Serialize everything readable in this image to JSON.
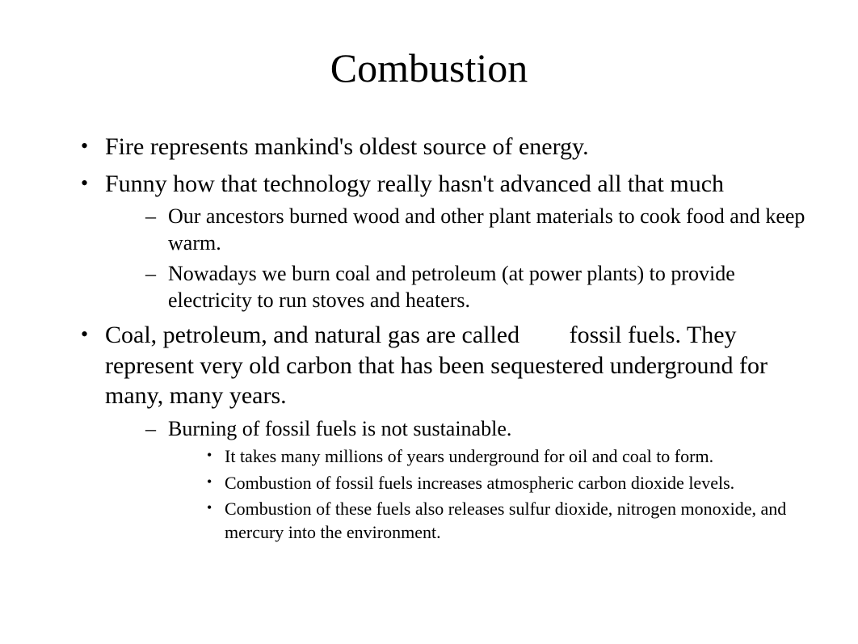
{
  "title": "Combustion",
  "bullets": {
    "b1": "Fire represents mankind's oldest source of energy.",
    "b2": "Funny how that technology really hasn't advanced all that much",
    "b2_sub1": "Our ancestors burned wood and other plant materials to cook food and keep warm.",
    "b2_sub2": "Nowadays we burn coal and petroleum (at power plants) to provide electricity to run stoves and heaters.",
    "b3_part1": "Coal, petroleum, and natural gas are called ",
    "b3_blank": "fossil fuels",
    "b3_part2": ". They represent very old carbon that has been sequestered underground for many, many years.",
    "b3_sub1": "Burning of fossil fuels is not sustainable.",
    "b3_sub1_a": "It takes many millions of years underground for oil and coal to form.",
    "b3_sub1_b": "Combustion of fossil fuels increases atmospheric carbon dioxide levels.",
    "b3_sub1_c": "Combustion of these fuels also releases sulfur dioxide, nitrogen monoxide, and mercury into the environment."
  },
  "styling": {
    "background_color": "#ffffff",
    "text_color": "#000000",
    "font_family": "Times New Roman",
    "title_fontsize": 50,
    "level1_fontsize": 30,
    "level2_fontsize": 26,
    "level3_fontsize": 22,
    "slide_width": 1062,
    "slide_height": 797,
    "level1_marker": "•",
    "level2_marker": "–",
    "level3_marker": "•"
  }
}
